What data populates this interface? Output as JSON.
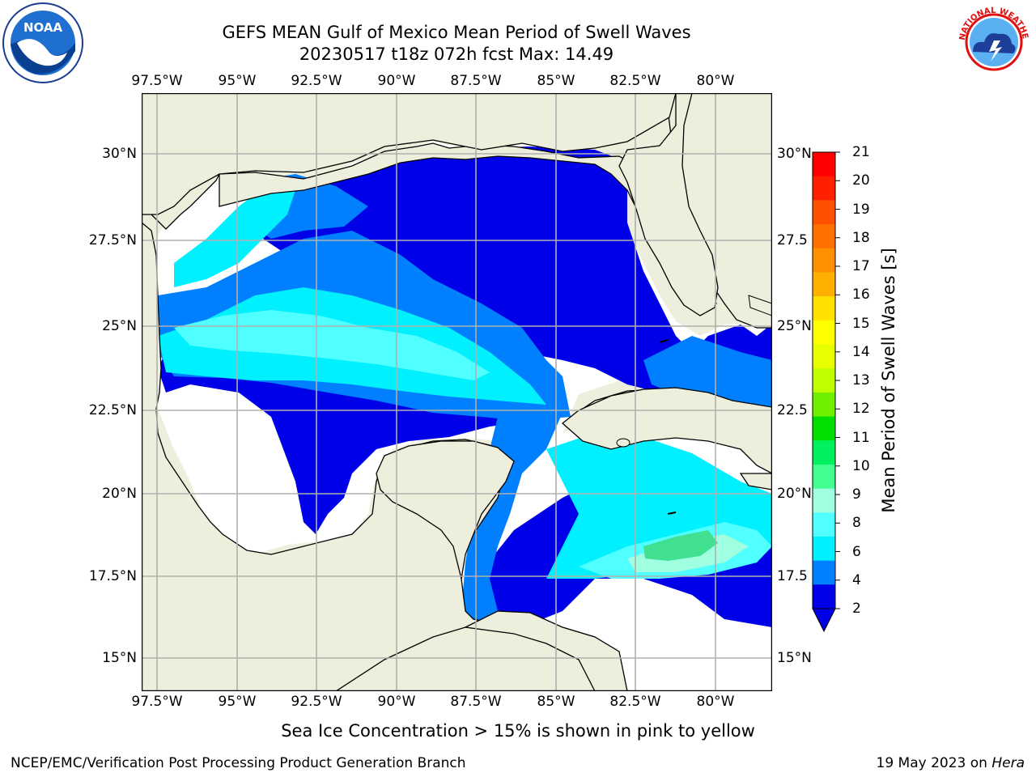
{
  "header": {
    "title_line1": "GEFS MEAN Gulf of Mexico Mean Period of Swell Waves",
    "title_line2": "20230517 t18z 072h fcst   Max: 14.49"
  },
  "logos": {
    "left": {
      "name": "noaa-logo",
      "text": "NOAA"
    },
    "right": {
      "name": "nws-logo",
      "text": "NATIONAL WEATHER SERVICE"
    }
  },
  "map": {
    "lon_ticks": [
      "97.5°W",
      "95°W",
      "92.5°W",
      "90°W",
      "87.5°W",
      "85°W",
      "82.5°W",
      "80°W"
    ],
    "lat_ticks_left": [
      "30°N",
      "27.5°N",
      "25°N",
      "22.5°N",
      "20°N",
      "17.5°N",
      "15°N"
    ],
    "lat_ticks_right": [
      "30°N",
      "27.5",
      "25°N",
      "22.5",
      "20°N",
      "17.5",
      "15°N"
    ],
    "colors": {
      "land": "#eeeedd",
      "coast": "#000000",
      "grid": "#b0b0b0",
      "nodata": "#ffffff"
    }
  },
  "colorbar": {
    "label": "Mean Period of Swell Waves [s]",
    "ticks": [
      "21",
      "20",
      "19",
      "18",
      "17",
      "16",
      "15",
      "14",
      "13",
      "12",
      "11",
      "10",
      "9",
      "8",
      "6",
      "4",
      "2"
    ],
    "colors": [
      "#ff0000",
      "#ff2000",
      "#ff5000",
      "#ff7000",
      "#ff9000",
      "#ffb000",
      "#ffe000",
      "#ffff00",
      "#e8ff00",
      "#c0ff00",
      "#70f000",
      "#00e000",
      "#00f060",
      "#40ff90",
      "#a0ffe0",
      "#50ffff",
      "#00f0ff",
      "#0080ff",
      "#0000e8"
    ]
  },
  "footer": {
    "note": "Sea Ice Concentration > 15% is shown in pink to yellow",
    "left": "NCEP/EMC/Verification Post Processing Product Generation Branch",
    "right_date": "19 May 2023 on",
    "right_host": "Hera"
  }
}
